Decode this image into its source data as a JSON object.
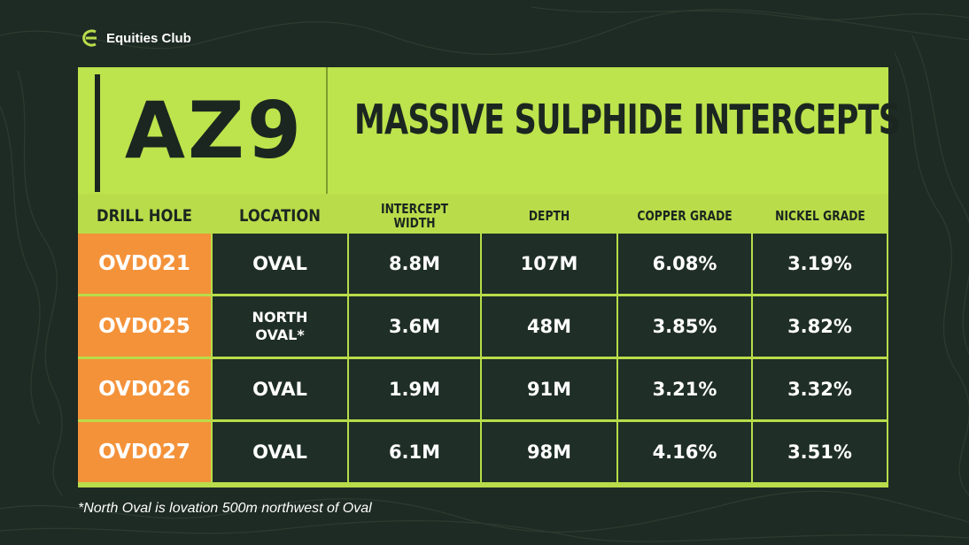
{
  "brand": {
    "name": "Equities Club",
    "icon": "equities-club-logo-icon",
    "accent": "#b9dc4a"
  },
  "header": {
    "ticker": "AZ9",
    "title": "MASSIVE SULPHIDE INTERCEPTS"
  },
  "table": {
    "columns": [
      "DRILL HOLE",
      "LOCATION",
      "INTERCEPT WIDTH",
      "DEPTH",
      "COPPER GRADE",
      "NICKEL GRADE"
    ],
    "rows": [
      {
        "hole": "OVD021",
        "location": "OVAL",
        "width": "8.8M",
        "depth": "107M",
        "copper": "6.08%",
        "nickel": "3.19%"
      },
      {
        "hole": "OVD025",
        "location": "NORTH OVAL*",
        "width": "3.6M",
        "depth": "48M",
        "copper": "3.85%",
        "nickel": "3.82%"
      },
      {
        "hole": "OVD026",
        "location": "OVAL",
        "width": "1.9M",
        "depth": "91M",
        "copper": "3.21%",
        "nickel": "3.32%"
      },
      {
        "hole": "OVD027",
        "location": "OVAL",
        "width": "6.1M",
        "depth": "98M",
        "copper": "4.16%",
        "nickel": "3.51%"
      }
    ]
  },
  "colors": {
    "hole_cell": "#f4923a",
    "data_cell": "#1f2e27",
    "header": "#bde34d"
  },
  "footnote": "*North Oval is lovation 500m northwest of Oval"
}
